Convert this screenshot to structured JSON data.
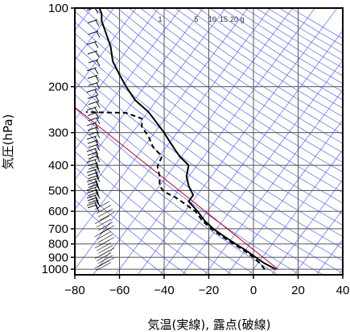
{
  "chart_data": {
    "type": "line",
    "title": "",
    "xlabel": "気温(実線), 露点(破線)",
    "ylabel": "気圧(hPa)",
    "xlim": [
      -80,
      40
    ],
    "ylim": [
      1050,
      100
    ],
    "y_scale": "log",
    "grid": true,
    "x_ticks": [
      "−80",
      "−60",
      "−40",
      "−20",
      "0",
      "20",
      "40"
    ],
    "x_tick_values": [
      -80,
      -60,
      -40,
      -20,
      0,
      20,
      40
    ],
    "y_ticks": [
      "100",
      "200",
      "300",
      "400",
      "500",
      "600",
      "700",
      "800",
      "900",
      "1000"
    ],
    "y_tick_values": [
      100,
      200,
      300,
      400,
      500,
      600,
      700,
      800,
      900,
      1000
    ],
    "mixing_ratio_labels": [
      "1",
      "5",
      "10",
      "15",
      "20",
      "g"
    ],
    "series": [
      {
        "style": "solid",
        "points": [
          [
            10,
            1000
          ],
          [
            5,
            950
          ],
          [
            1,
            900
          ],
          [
            -3,
            850
          ],
          [
            -8,
            800
          ],
          [
            -13,
            750
          ],
          [
            -18,
            700
          ],
          [
            -22,
            650
          ],
          [
            -25,
            600
          ],
          [
            -29,
            550
          ],
          [
            -27,
            520
          ],
          [
            -29,
            480
          ],
          [
            -30,
            440
          ],
          [
            -29,
            400
          ],
          [
            -33,
            370
          ],
          [
            -35,
            350
          ],
          [
            -38,
            320
          ],
          [
            -40,
            300
          ],
          [
            -44,
            270
          ],
          [
            -47,
            250
          ],
          [
            -53,
            225
          ],
          [
            -57,
            200
          ],
          [
            -60,
            180
          ],
          [
            -63,
            160
          ],
          [
            -64,
            140
          ],
          [
            -66,
            125
          ],
          [
            -68,
            112
          ],
          [
            -68,
            105
          ],
          [
            -69,
            100
          ]
        ]
      },
      {
        "style": "dashed",
        "points": [
          [
            5,
            1000
          ],
          [
            3,
            950
          ],
          [
            0,
            900
          ],
          [
            -4,
            850
          ],
          [
            -9,
            800
          ],
          [
            -14,
            750
          ],
          [
            -19,
            700
          ],
          [
            -23,
            650
          ],
          [
            -26,
            600
          ],
          [
            -31,
            560
          ],
          [
            -35,
            530
          ],
          [
            -40,
            505
          ],
          [
            -42,
            480
          ],
          [
            -42,
            440
          ],
          [
            -43,
            405
          ],
          [
            -41,
            370
          ],
          [
            -45,
            340
          ],
          [
            -47,
            310
          ],
          [
            -50,
            285
          ],
          [
            -50,
            265
          ],
          [
            -57,
            252
          ],
          [
            -75,
            250
          ]
        ]
      }
    ],
    "reference_line": {
      "color": "#b0002a",
      "points": [
        [
          11,
          1000
        ],
        [
          -80,
          240
        ]
      ]
    }
  }
}
